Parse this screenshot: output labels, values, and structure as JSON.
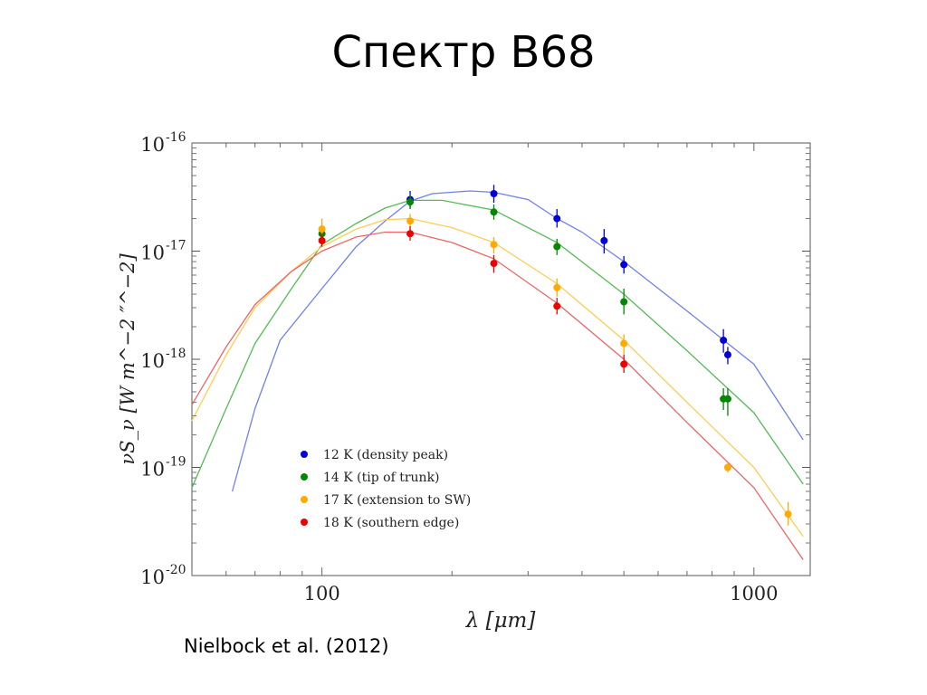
{
  "slide": {
    "title": "Спектр B68",
    "caption": "Nielbock et al. (2012)"
  },
  "chart_data": {
    "type": "scatter",
    "xscale": "log",
    "yscale": "log",
    "xlim": [
      50,
      1350
    ],
    "ylim": [
      1e-20,
      1e-16
    ],
    "xlabel": "λ [μm]",
    "ylabel": "νS_ν [W m^−2 ″^−2]",
    "x_ticks": [
      {
        "value": 100,
        "label": "100"
      },
      {
        "value": 1000,
        "label": "1000"
      }
    ],
    "y_ticks": [
      {
        "value": 1e-16,
        "base": "10",
        "exp": "-16"
      },
      {
        "value": 1e-17,
        "base": "10",
        "exp": "-17"
      },
      {
        "value": 1e-18,
        "base": "10",
        "exp": "-18"
      },
      {
        "value": 1e-19,
        "base": "10",
        "exp": "-19"
      },
      {
        "value": 1e-20,
        "base": "10",
        "exp": "-20"
      }
    ],
    "grid": false,
    "legend_position": "bottom-left",
    "series": [
      {
        "name": "12 K (density peak)",
        "color": "#0000dd",
        "line_color": "#7080ee",
        "points": [
          {
            "x": 160,
            "y": 3e-17,
            "ylo": 2.5e-17,
            "yhi": 3.6e-17
          },
          {
            "x": 250,
            "y": 3.4e-17,
            "ylo": 2.8e-17,
            "yhi": 4.1e-17
          },
          {
            "x": 350,
            "y": 2e-17,
            "ylo": 1.65e-17,
            "yhi": 2.45e-17
          },
          {
            "x": 450,
            "y": 1.25e-17,
            "ylo": 9.5e-18,
            "yhi": 1.6e-17
          },
          {
            "x": 500,
            "y": 7.5e-18,
            "ylo": 6.2e-18,
            "yhi": 9e-18
          },
          {
            "x": 850,
            "y": 1.5e-18,
            "ylo": 1.15e-18,
            "yhi": 1.9e-18
          },
          {
            "x": 870,
            "y": 1.1e-18,
            "ylo": 9e-19,
            "yhi": 1.3e-18
          }
        ],
        "model": [
          [
            62,
            6e-20
          ],
          [
            70,
            3.5e-19
          ],
          [
            80,
            1.5e-18
          ],
          [
            100,
            4.5e-18
          ],
          [
            120,
            1.1e-17
          ],
          [
            140,
            1.9e-17
          ],
          [
            160,
            2.9e-17
          ],
          [
            180,
            3.4e-17
          ],
          [
            220,
            3.6e-17
          ],
          [
            250,
            3.5e-17
          ],
          [
            300,
            3e-17
          ],
          [
            350,
            2e-17
          ],
          [
            400,
            1.5e-17
          ],
          [
            500,
            8e-18
          ],
          [
            700,
            2.8e-18
          ],
          [
            1000,
            9e-19
          ],
          [
            1300,
            1.8e-19
          ]
        ]
      },
      {
        "name": "14 K (tip of trunk)",
        "color": "#008800",
        "line_color": "#55bb55",
        "points": [
          {
            "x": 100,
            "y": 1.45e-17,
            "ylo": 1.3e-17,
            "yhi": 1.65e-17
          },
          {
            "x": 160,
            "y": 2.85e-17,
            "ylo": 2.45e-17,
            "yhi": 3.35e-17
          },
          {
            "x": 250,
            "y": 2.3e-17,
            "ylo": 1.95e-17,
            "yhi": 2.7e-17
          },
          {
            "x": 350,
            "y": 1.1e-17,
            "ylo": 9.2e-18,
            "yhi": 1.3e-17
          },
          {
            "x": 500,
            "y": 3.4e-18,
            "ylo": 2.6e-18,
            "yhi": 4.5e-18
          },
          {
            "x": 850,
            "y": 4.3e-19,
            "ylo": 3.4e-19,
            "yhi": 5.4e-19
          },
          {
            "x": 870,
            "y": 4.3e-19,
            "ylo": 3e-19,
            "yhi": 5.4e-19
          }
        ],
        "model": [
          [
            50,
            6.5e-20
          ],
          [
            60,
            3.5e-19
          ],
          [
            70,
            1.4e-18
          ],
          [
            85,
            4.5e-18
          ],
          [
            100,
            1.15e-17
          ],
          [
            120,
            1.8e-17
          ],
          [
            140,
            2.5e-17
          ],
          [
            160,
            2.95e-17
          ],
          [
            190,
            2.95e-17
          ],
          [
            250,
            2.4e-17
          ],
          [
            350,
            1.2e-17
          ],
          [
            500,
            4e-18
          ],
          [
            700,
            1.2e-18
          ],
          [
            1000,
            3.2e-19
          ],
          [
            1300,
            7e-20
          ]
        ]
      },
      {
        "name": "17 K (extension to SW)",
        "color": "#ffaa00",
        "line_color": "#ffcc55",
        "points": [
          {
            "x": 100,
            "y": 1.6e-17,
            "ylo": 1.4e-17,
            "yhi": 2e-17
          },
          {
            "x": 160,
            "y": 1.9e-17,
            "ylo": 1.6e-17,
            "yhi": 2.2e-17
          },
          {
            "x": 250,
            "y": 1.15e-17,
            "ylo": 9.5e-18,
            "yhi": 1.35e-17
          },
          {
            "x": 350,
            "y": 4.6e-18,
            "ylo": 3.8e-18,
            "yhi": 5.6e-18
          },
          {
            "x": 500,
            "y": 1.4e-18,
            "ylo": 1.1e-18,
            "yhi": 1.7e-18
          },
          {
            "x": 870,
            "y": 1e-19,
            "ylo": 9e-20,
            "yhi": 1.1e-19
          },
          {
            "x": 1200,
            "y": 3.7e-20,
            "ylo": 2.9e-20,
            "yhi": 4.8e-20
          }
        ],
        "model": [
          [
            50,
            2.7e-19
          ],
          [
            60,
            1.1e-18
          ],
          [
            70,
            3e-18
          ],
          [
            85,
            6.5e-18
          ],
          [
            100,
            1.1e-17
          ],
          [
            120,
            1.6e-17
          ],
          [
            140,
            1.95e-17
          ],
          [
            160,
            2e-17
          ],
          [
            200,
            1.65e-17
          ],
          [
            250,
            1.2e-17
          ],
          [
            350,
            5e-18
          ],
          [
            500,
            1.5e-18
          ],
          [
            700,
            4e-19
          ],
          [
            1000,
            1e-19
          ],
          [
            1300,
            2.3e-20
          ]
        ]
      },
      {
        "name": "18 K (southern edge)",
        "color": "#ee0000",
        "line_color": "#ee6666",
        "points": [
          {
            "x": 100,
            "y": 1.25e-17,
            "ylo": 1.1e-17,
            "yhi": 1.45e-17
          },
          {
            "x": 160,
            "y": 1.45e-17,
            "ylo": 1.25e-17,
            "yhi": 1.7e-17
          },
          {
            "x": 250,
            "y": 7.7e-18,
            "ylo": 6.3e-18,
            "yhi": 9.2e-18
          },
          {
            "x": 350,
            "y": 3.1e-18,
            "ylo": 2.6e-18,
            "yhi": 3.7e-18
          },
          {
            "x": 500,
            "y": 9e-19,
            "ylo": 7.5e-19,
            "yhi": 1.1e-18
          }
        ],
        "model": [
          [
            50,
            3.8e-19
          ],
          [
            60,
            1.3e-18
          ],
          [
            70,
            3.2e-18
          ],
          [
            85,
            6.5e-18
          ],
          [
            100,
            1e-17
          ],
          [
            120,
            1.35e-17
          ],
          [
            140,
            1.5e-17
          ],
          [
            160,
            1.5e-17
          ],
          [
            200,
            1.2e-17
          ],
          [
            250,
            8.5e-18
          ],
          [
            350,
            3.3e-18
          ],
          [
            500,
            1e-18
          ],
          [
            700,
            2.6e-19
          ],
          [
            1000,
            6.5e-20
          ],
          [
            1300,
            1.4e-20
          ]
        ]
      }
    ]
  }
}
